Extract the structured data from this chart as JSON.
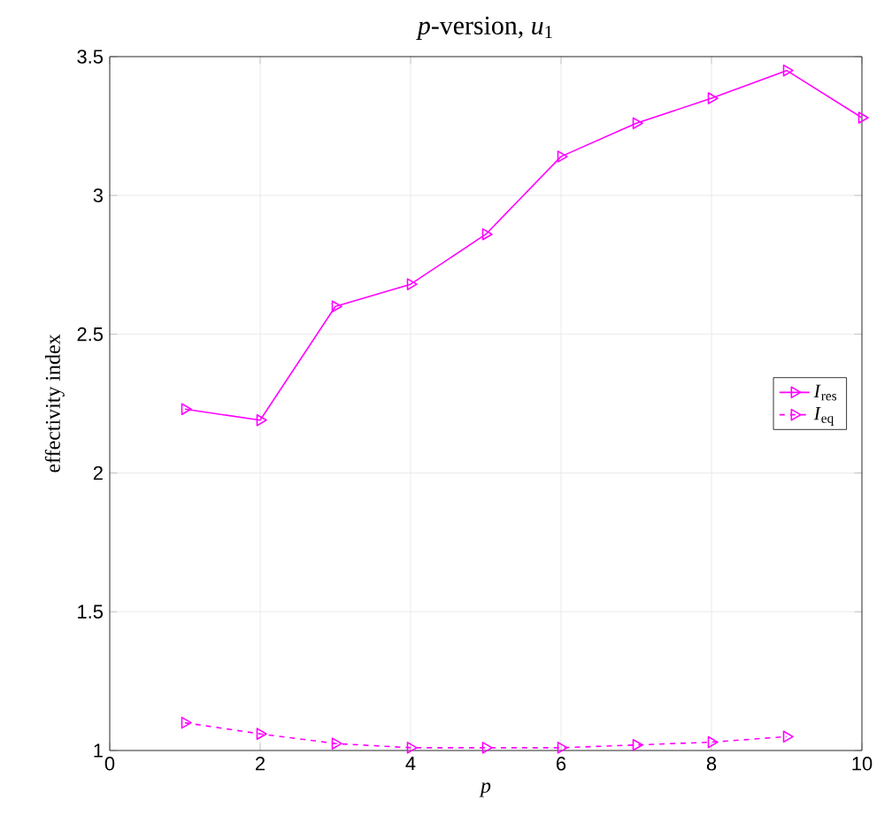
{
  "chart_data": {
    "type": "line",
    "title": "*p*-version, *u*$_{1}$",
    "xlabel": "*p*",
    "ylabel": "effectivity index",
    "x": [
      1,
      2,
      3,
      4,
      5,
      6,
      7,
      8,
      9,
      10
    ],
    "series": [
      {
        "name": "*I*$_{res}$",
        "color": "#ff00ff",
        "line_style": "solid",
        "values": [
          2.23,
          2.19,
          2.6,
          2.68,
          2.86,
          3.14,
          3.26,
          3.35,
          3.45,
          3.28
        ]
      },
      {
        "name": "*I*$_{eq}$",
        "color": "#ff00ff",
        "line_style": "dashed",
        "x": [
          1,
          2,
          3,
          4,
          5,
          6,
          7,
          8,
          9
        ],
        "values": [
          1.1,
          1.06,
          1.025,
          1.01,
          1.01,
          1.01,
          1.02,
          1.03,
          1.05
        ]
      }
    ],
    "xlim": [
      0,
      10
    ],
    "ylim": [
      1,
      3.5
    ],
    "xticks": [
      0,
      2,
      4,
      6,
      8,
      10
    ],
    "yticks": [
      1,
      1.5,
      2,
      2.5,
      3,
      3.5
    ],
    "grid": true,
    "legend": "right",
    "marker": "triangle"
  }
}
